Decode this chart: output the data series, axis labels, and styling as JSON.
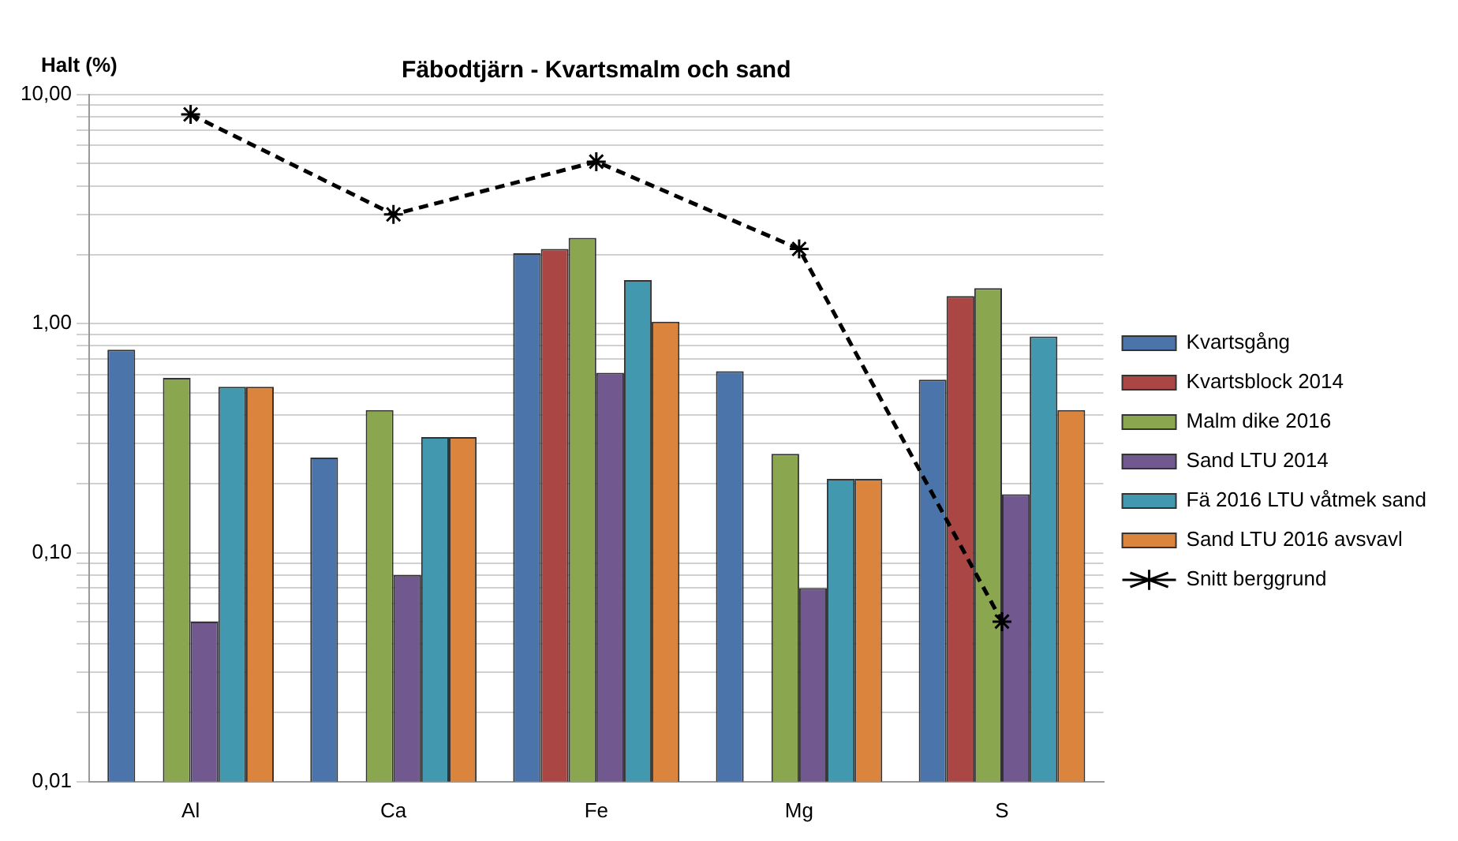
{
  "chart_data": {
    "type": "bar",
    "title": "Fäbodtjärn - Kvartsmalm och sand",
    "ylabel": "Halt (%)",
    "categories": [
      "Al",
      "Ca",
      "Fe",
      "Mg",
      "S"
    ],
    "series": [
      {
        "name": "Kvartsgång",
        "color": "#4a74aa",
        "values": [
          0.77,
          0.26,
          2.03,
          0.62,
          0.57
        ]
      },
      {
        "name": "Kvartsblock 2014",
        "color": "#aa4644",
        "values": [
          null,
          null,
          2.12,
          null,
          1.32
        ]
      },
      {
        "name": "Malm dike 2016",
        "color": "#8aa64e",
        "values": [
          0.58,
          0.42,
          2.37,
          0.27,
          1.43
        ]
      },
      {
        "name": "Sand LTU 2014",
        "color": "#71588f",
        "values": [
          0.05,
          0.08,
          0.61,
          0.07,
          0.18
        ]
      },
      {
        "name": "Fä 2016 LTU våtmek sand",
        "color": "#4298af",
        "values": [
          0.53,
          0.32,
          1.55,
          0.21,
          0.88
        ]
      },
      {
        "name": "Sand LTU 2016 avsvavl",
        "color": "#db843d",
        "values": [
          0.53,
          0.32,
          1.02,
          0.21,
          0.42
        ]
      },
      {
        "name": "Snitt berggrund",
        "type": "line",
        "color": "#000000",
        "marker": "cross",
        "line_style": "dashed",
        "values": [
          8.2,
          3.0,
          5.1,
          2.12,
          0.05
        ]
      }
    ],
    "log": "y",
    "ylim": [
      0.01,
      10
    ],
    "yticks": [
      {
        "value": 0.01,
        "label": "0,01"
      },
      {
        "value": 0.02,
        "label": null
      },
      {
        "value": 0.03,
        "label": null
      },
      {
        "value": 0.04,
        "label": null
      },
      {
        "value": 0.05,
        "label": null
      },
      {
        "value": 0.06,
        "label": null
      },
      {
        "value": 0.07,
        "label": null
      },
      {
        "value": 0.08,
        "label": null
      },
      {
        "value": 0.09,
        "label": null
      },
      {
        "value": 0.1,
        "label": "0,10"
      },
      {
        "value": 0.2,
        "label": null
      },
      {
        "value": 0.3,
        "label": null
      },
      {
        "value": 0.4,
        "label": null
      },
      {
        "value": 0.5,
        "label": null
      },
      {
        "value": 0.6,
        "label": null
      },
      {
        "value": 0.7,
        "label": null
      },
      {
        "value": 0.8,
        "label": null
      },
      {
        "value": 0.9,
        "label": null
      },
      {
        "value": 1,
        "label": "1,00"
      },
      {
        "value": 2,
        "label": null
      },
      {
        "value": 3,
        "label": null
      },
      {
        "value": 4,
        "label": null
      },
      {
        "value": 5,
        "label": null
      },
      {
        "value": 6,
        "label": null
      },
      {
        "value": 7,
        "label": null
      },
      {
        "value": 8,
        "label": null
      },
      {
        "value": 9,
        "label": null
      },
      {
        "value": 10,
        "label": "10,00"
      }
    ],
    "grid": "y",
    "legend": "right"
  }
}
